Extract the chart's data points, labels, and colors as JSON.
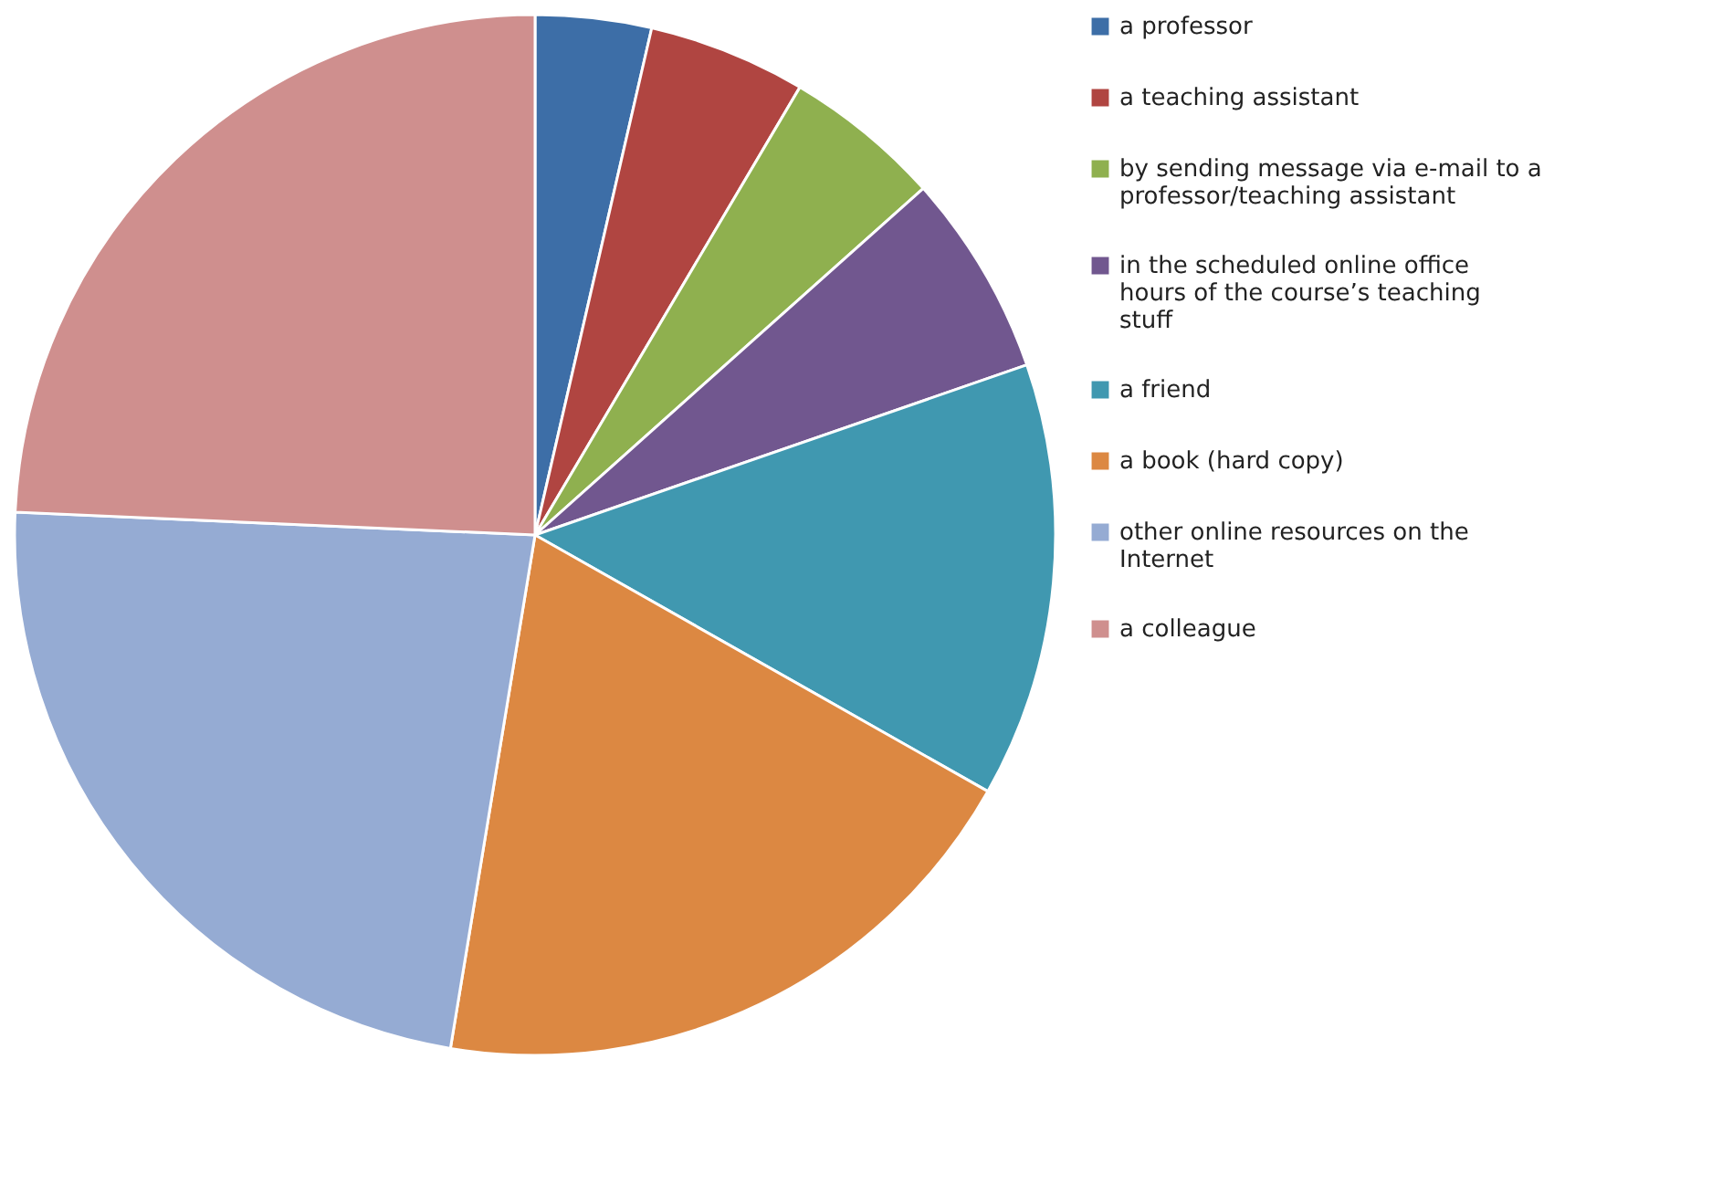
{
  "chart_data": {
    "type": "pie",
    "categories": [
      "a professor",
      "a teaching assistant",
      "by sending message via e-mail to a professor/teaching assistant",
      "in the scheduled online office hours of the course’s teaching stuff",
      "a friend",
      "a book (hard copy)",
      "other online resources on the Internet",
      "a colleague"
    ],
    "values": [
      3.6,
      4.9,
      4.9,
      6.3,
      13.5,
      19.4,
      23.1,
      24.3
    ],
    "colors": [
      "#3d6ea7",
      "#b04541",
      "#8fb04f",
      "#71578f",
      "#4098b0",
      "#dc8842",
      "#95abd3",
      "#cf8f8e"
    ],
    "legend": "right"
  }
}
